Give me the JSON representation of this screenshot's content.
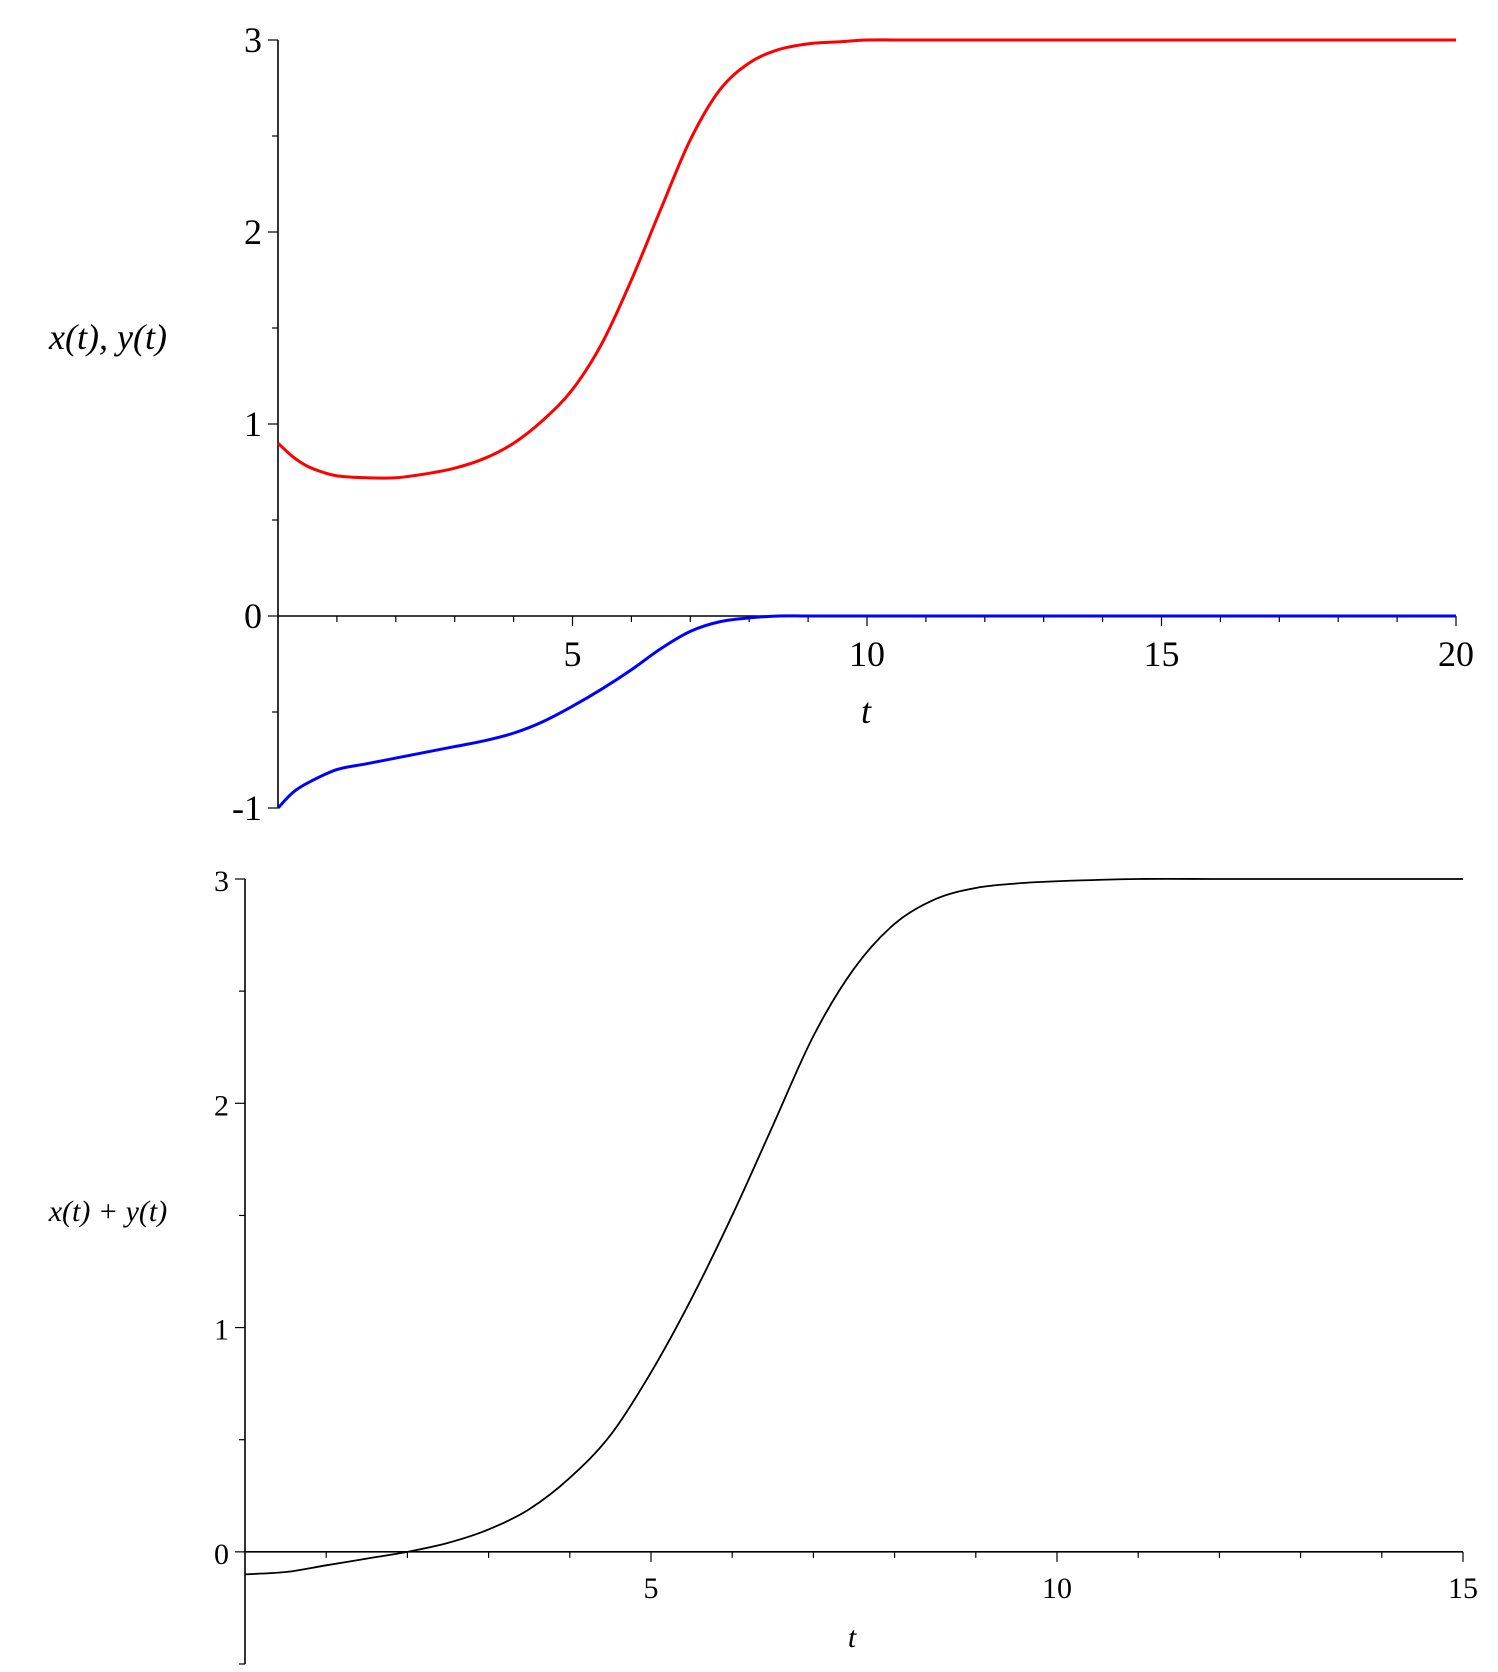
{
  "chart_data": [
    {
      "type": "line",
      "xlabel": "t",
      "ylabel": "x(t), y(t)",
      "xlim": [
        0,
        20
      ],
      "ylim": [
        -1,
        3
      ],
      "xticks": [
        5,
        10,
        15,
        20
      ],
      "yticks": [
        -1,
        0,
        1,
        2,
        3
      ],
      "grid": false,
      "series": [
        {
          "color": "#ff0000",
          "x": [
            0,
            0.25,
            0.5,
            0.75,
            1,
            1.5,
            2,
            2.5,
            3,
            3.5,
            4,
            4.5,
            5,
            5.5,
            6,
            6.5,
            7,
            7.5,
            8,
            8.5,
            9,
            9.5,
            10,
            10.5,
            11,
            12,
            14,
            16,
            18,
            20
          ],
          "y": [
            0.9,
            0.83,
            0.78,
            0.75,
            0.73,
            0.72,
            0.72,
            0.74,
            0.77,
            0.82,
            0.9,
            1.02,
            1.18,
            1.42,
            1.75,
            2.12,
            2.48,
            2.74,
            2.88,
            2.95,
            2.98,
            2.99,
            3.0,
            3.0,
            3.0,
            3.0,
            3.0,
            3.0,
            3.0,
            3.0
          ]
        },
        {
          "color": "#0000ff",
          "x": [
            0,
            0.25,
            0.5,
            1,
            1.5,
            2,
            2.5,
            3,
            3.5,
            4,
            4.5,
            5,
            5.5,
            6,
            6.5,
            7,
            7.5,
            8,
            8.5,
            9,
            10,
            12,
            15,
            20
          ],
          "y": [
            -1.0,
            -0.92,
            -0.87,
            -0.8,
            -0.77,
            -0.74,
            -0.71,
            -0.68,
            -0.65,
            -0.61,
            -0.55,
            -0.47,
            -0.38,
            -0.28,
            -0.17,
            -0.08,
            -0.03,
            -0.01,
            0.0,
            0.0,
            0.0,
            0.0,
            0.0,
            0.0
          ]
        }
      ]
    },
    {
      "type": "line",
      "xlabel": "t",
      "ylabel": "x(t) + y(t)",
      "xlim": [
        0,
        15
      ],
      "ylim": [
        -0.5,
        3
      ],
      "xticks": [
        5,
        10,
        15
      ],
      "yticks": [
        0,
        1,
        2,
        3
      ],
      "grid": false,
      "series": [
        {
          "color": "#000000",
          "x": [
            0,
            0.5,
            1,
            1.5,
            2,
            2.5,
            3,
            3.5,
            4,
            4.5,
            5,
            5.5,
            6,
            6.5,
            7,
            7.5,
            8,
            8.5,
            9,
            9.5,
            10,
            11,
            12,
            13,
            14,
            15
          ],
          "y": [
            -0.1,
            -0.09,
            -0.06,
            -0.03,
            0.0,
            0.04,
            0.1,
            0.19,
            0.33,
            0.52,
            0.8,
            1.13,
            1.5,
            1.9,
            2.3,
            2.6,
            2.8,
            2.91,
            2.96,
            2.98,
            2.99,
            3.0,
            3.0,
            3.0,
            3.0,
            3.0
          ]
        }
      ]
    }
  ]
}
